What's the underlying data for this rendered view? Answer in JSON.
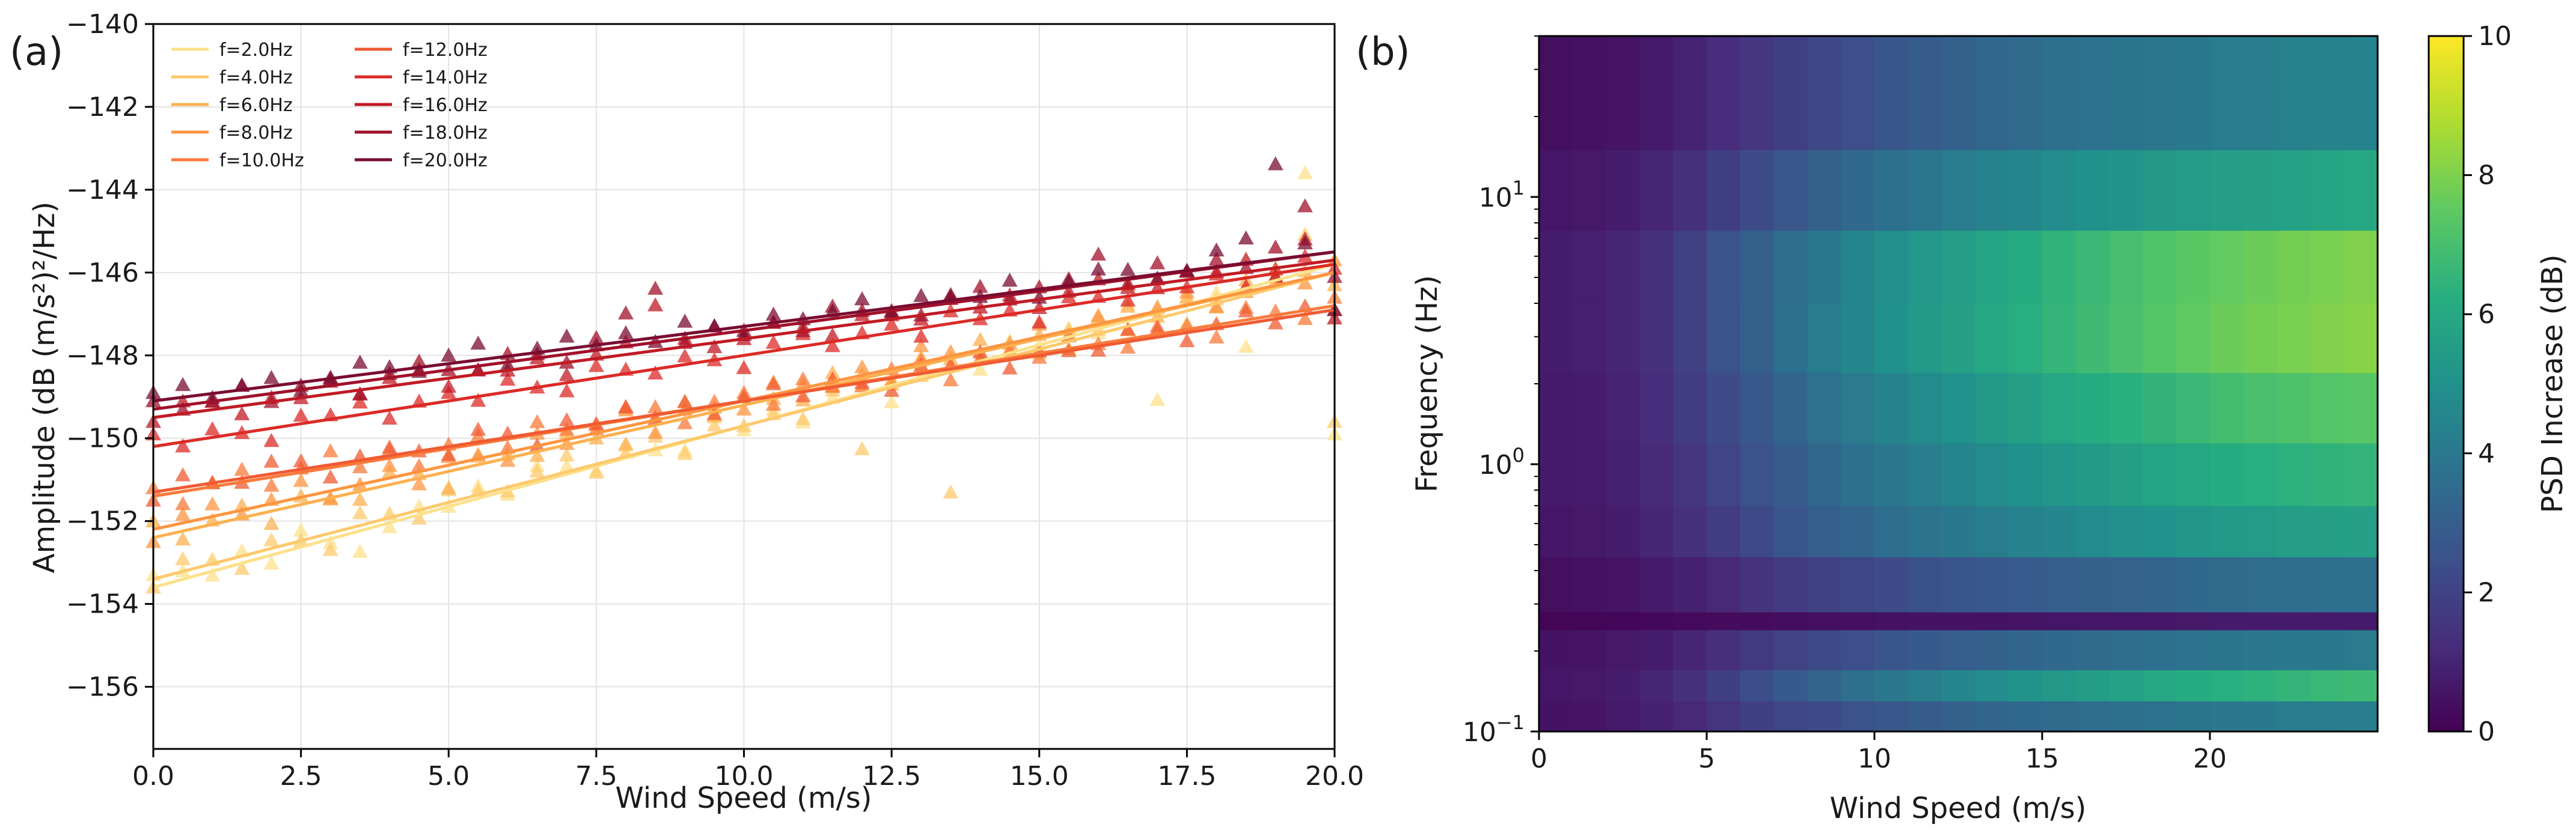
{
  "chart_data": [
    {
      "panel": "(a)",
      "type": "scatter",
      "marker": "triangle",
      "fit": "linear",
      "xlabel": "Wind Speed (m/s)",
      "ylabel": "Amplitude (dB (m/s²)²/Hz)",
      "xlim": [
        0,
        20
      ],
      "ylim": [
        -157.5,
        -140
      ],
      "xticks": [
        0,
        2.5,
        5,
        7.5,
        10,
        12.5,
        15,
        17.5,
        20
      ],
      "xtick_labels": [
        "0.0",
        "2.5",
        "5.0",
        "7.5",
        "10.0",
        "12.5",
        "15.0",
        "17.5",
        "20.0"
      ],
      "yticks": [
        -156,
        -154,
        -152,
        -150,
        -148,
        -146,
        -144,
        -142,
        -140
      ],
      "ytick_labels": [
        "−156",
        "−154",
        "−152",
        "−150",
        "−148",
        "−146",
        "−144",
        "−142",
        "−140"
      ],
      "grid": true,
      "legend_position": "top-left",
      "x": [
        0,
        0.5,
        1,
        1.5,
        2,
        2.5,
        3,
        3.5,
        4,
        4.5,
        5,
        5.5,
        6,
        6.5,
        7,
        7.5,
        8,
        8.5,
        9,
        9.5,
        10,
        10.5,
        11,
        11.5,
        12,
        12.5,
        13,
        13.5,
        14,
        14.5,
        15,
        15.5,
        16,
        16.5,
        17,
        17.5,
        18,
        18.5,
        19,
        19.5,
        20
      ],
      "series": [
        {
          "name": "f=2.0Hz",
          "color": "#fde08a",
          "intercept": -153.6,
          "slope": 0.39,
          "residuals": [
            0.3,
            0.2,
            -0.1,
            0.3,
            -0.2,
            0.4,
            -0.1,
            -0.5,
            -0.1,
            0.2,
            0.0,
            0.3,
            -0.1,
            0.4,
            0.2,
            -0.1,
            0.3,
            0.0,
            -0.2,
            0.4,
            -0.1,
            0.2,
            -0.3,
            0.1,
            0.2,
            -0.4,
            0.3,
            0.1,
            -0.2,
            0.3,
            0.0,
            0.2,
            -0.1,
            0.4,
            -2.1,
            0.2,
            0.1,
            -1.4,
            0.3,
            2.4,
            -4.1
          ]
        },
        {
          "name": "f=4.0Hz",
          "color": "#fdc96c",
          "intercept": -153.4,
          "slope": 0.37,
          "residuals": [
            -0.2,
            0.3,
            0.1,
            -0.3,
            0.2,
            0.0,
            -0.4,
            0.3,
            0.1,
            -0.2,
            0.3,
            0.1,
            -0.1,
            0.2,
            0.4,
            -0.2,
            0.1,
            0.3,
            -0.3,
            0.2,
            0.0,
            0.1,
            -0.2,
            0.3,
            -1.3,
            0.2,
            0.1,
            -2.9,
            0.3,
            0.2,
            -0.1,
            0.3,
            0.1,
            1.0,
            0.2,
            -0.3,
            0.1,
            0.2,
            0.3,
            1.1,
            -3.6
          ]
        },
        {
          "name": "f=6.0Hz",
          "color": "#fcb050",
          "intercept": -152.4,
          "slope": 0.32,
          "residuals": [
            0.4,
            -0.2,
            0.1,
            0.3,
            -0.3,
            0.2,
            0.0,
            -0.2,
            0.3,
            0.1,
            -0.4,
            0.2,
            0.1,
            -0.1,
            0.3,
            0.0,
            -0.3,
            0.2,
            0.4,
            -0.1,
            0.2,
            0.0,
            -0.2,
            0.3,
            0.1,
            -0.3,
            0.2,
            0.0,
            0.3,
            -0.2,
            0.1,
            -0.4,
            0.2,
            0.3,
            -0.1,
            0.2,
            -0.2,
            0.3,
            0.1,
            0.2,
            -0.3
          ]
        },
        {
          "name": "f=8.0Hz",
          "color": "#fc9540",
          "intercept": -152.2,
          "slope": 0.31,
          "residuals": [
            -0.3,
            0.2,
            0.3,
            -0.1,
            0.1,
            0.4,
            -0.2,
            0.0,
            0.3,
            -0.3,
            0.2,
            0.1,
            -0.2,
            0.3,
            -0.1,
            0.2,
            0.4,
            -0.3,
            0.1,
            0.0,
            -0.2,
            0.3,
            0.1,
            -0.1,
            0.2,
            -0.3,
            0.4,
            0.1,
            -0.2,
            0.0,
            0.3,
            -0.1,
            0.2,
            -0.3,
            0.1,
            0.3,
            -0.2,
            0.0,
            0.2,
            -0.1,
            0.3
          ]
        },
        {
          "name": "f=10.0Hz",
          "color": "#f97a3a",
          "intercept": -151.4,
          "slope": 0.23,
          "residuals": [
            0.2,
            -0.3,
            0.1,
            0.3,
            -0.2,
            0.1,
            0.4,
            -0.1,
            0.2,
            -0.3,
            0.1,
            0.2,
            -0.2,
            0.3,
            0.0,
            -0.1,
            0.3,
            0.2,
            -0.3,
            0.1,
            0.2,
            -0.2,
            0.3,
            0.0,
            -0.1,
            0.2,
            0.3,
            -0.3,
            0.1,
            0.2,
            -0.1,
            0.3,
            0.0,
            -0.2,
            0.2,
            0.1,
            -0.3,
            0.3,
            0.1,
            -0.2,
            0.2
          ]
        },
        {
          "name": "f=12.0Hz",
          "color": "#f05a32",
          "intercept": -151.3,
          "slope": 0.22,
          "residuals": [
            -0.2,
            0.3,
            0.0,
            -0.1,
            0.3,
            0.2,
            -0.3,
            0.1,
            0.2,
            0.0,
            -0.2,
            0.3,
            0.1,
            -0.3,
            0.2,
            0.0,
            0.3,
            -0.1,
            0.2,
            -0.2,
            0.1,
            0.3,
            -0.1,
            0.2,
            0.0,
            -0.3,
            0.2,
            0.1,
            0.3,
            -0.2,
            0.1,
            0.0,
            -0.1,
            0.3,
            0.2,
            -0.2,
            0.1,
            0.3,
            -0.1,
            0.2,
            0.0
          ]
        },
        {
          "name": "f=14.0Hz",
          "color": "#dc2a26",
          "intercept": -150.2,
          "slope": 0.22,
          "residuals": [
            0.3,
            -0.1,
            0.2,
            0.0,
            -0.3,
            0.2,
            0.1,
            0.3,
            -0.2,
            0.1,
            0.2,
            -0.1,
            0.3,
            0.0,
            -0.2,
            0.3,
            0.1,
            -0.1,
            0.2,
            0.0,
            -0.3,
            0.2,
            0.3,
            -0.1,
            0.1,
            0.2,
            -0.2,
            0.3,
            0.0,
            0.1,
            -0.3,
            0.2,
            0.1,
            -0.1,
            0.3,
            0.0,
            0.2,
            -0.2,
            0.1,
            0.3,
            -0.1
          ]
        },
        {
          "name": "f=16.0Hz",
          "color": "#c11a24",
          "intercept": -149.5,
          "slope": 0.19,
          "residuals": [
            -0.1,
            0.3,
            0.2,
            -0.2,
            0.1,
            0.0,
            0.3,
            -0.1,
            0.2,
            0.3,
            -0.2,
            0.1,
            0.0,
            0.2,
            -0.3,
            0.1,
            0.3,
            1.1,
            0.2,
            -0.1,
            0.0,
            0.3,
            0.1,
            -0.2,
            0.2,
            0.1,
            -0.1,
            0.3,
            0.0,
            0.2,
            -0.2,
            0.1,
            0.3,
            0.0,
            -0.1,
            0.2,
            0.1,
            0.3,
            -0.2,
            0.6,
            -1.4
          ]
        },
        {
          "name": "f=18.0Hz",
          "color": "#a1102a",
          "intercept": -149.3,
          "slope": 0.19,
          "residuals": [
            0.2,
            -0.1,
            0.0,
            0.3,
            -0.2,
            0.1,
            0.2,
            -0.3,
            0.1,
            0.3,
            0.0,
            -0.1,
            0.2,
            0.1,
            -0.2,
            0.3,
            0.8,
            1.3,
            -0.1,
            0.2,
            0.0,
            0.1,
            -0.2,
            0.3,
            0.1,
            0.0,
            -0.2,
            0.2,
            0.3,
            -0.1,
            0.1,
            0.2,
            0.7,
            -0.1,
            0.3,
            0.0,
            0.2,
            -0.1,
            0.3,
            1.2,
            -0.6
          ]
        },
        {
          "name": "f=20.0Hz",
          "color": "#7a0c30",
          "intercept": -149.1,
          "slope": 0.18,
          "residuals": [
            0.2,
            0.3,
            -0.1,
            0.1,
            0.2,
            -0.2,
            0.0,
            0.3,
            0.1,
            -0.1,
            0.2,
            0.4,
            -0.2,
            0.1,
            0.3,
            0.0,
            0.2,
            -0.1,
            0.3,
            0.1,
            -0.2,
            0.2,
            0.0,
            0.1,
            0.3,
            -0.1,
            0.2,
            0.1,
            0.0,
            0.3,
            -0.2,
            0.1,
            0.3,
            0.2,
            -0.1,
            0.0,
            0.4,
            0.6,
            2.3,
            0.3,
            -1.4
          ]
        }
      ]
    },
    {
      "panel": "(b)",
      "type": "heatmap",
      "xlabel": "Wind Speed (m/s)",
      "ylabel": "Frequency (Hz)",
      "x_range": [
        0,
        25
      ],
      "xticks": [
        0,
        5,
        10,
        15,
        20
      ],
      "xtick_labels": [
        "0",
        "5",
        "10",
        "15",
        "20"
      ],
      "y_scale": "log",
      "y_range": [
        0.1,
        40
      ],
      "yticks": [
        0.1,
        1,
        10
      ],
      "ytick_labels": [
        {
          "base": "10",
          "exp": "−1"
        },
        {
          "base": "10",
          "exp": "0"
        },
        {
          "base": "10",
          "exp": "1"
        }
      ],
      "colormap": "viridis",
      "colorbar": {
        "label": "PSD Increase (dB)",
        "range": [
          0,
          10
        ],
        "ticks": [
          0,
          2,
          4,
          6,
          8,
          10
        ],
        "tick_labels": [
          "0",
          "2",
          "4",
          "6",
          "8",
          "10"
        ]
      },
      "x_samples": [
        0,
        1,
        2,
        3,
        4,
        5,
        6,
        7,
        8,
        9,
        10,
        11,
        12,
        13,
        14,
        15,
        16,
        17,
        18,
        19,
        20,
        21,
        22,
        23,
        24,
        25
      ],
      "frequency_bands": [
        {
          "fmin": 0.1,
          "fmax": 0.13,
          "values": [
            0.5,
            0.5,
            0.6,
            0.8,
            1.0,
            1.3,
            1.7,
            2.0,
            2.2,
            2.4,
            2.6,
            2.8,
            3.0,
            3.2,
            3.3,
            3.4,
            3.5,
            3.6,
            3.7,
            3.8,
            3.9,
            4.0,
            4.1,
            4.2,
            4.2,
            4.3
          ]
        },
        {
          "fmin": 0.13,
          "fmax": 0.17,
          "values": [
            0.6,
            0.6,
            0.7,
            0.9,
            1.2,
            1.6,
            2.1,
            2.6,
            3.0,
            3.4,
            3.8,
            4.1,
            4.4,
            4.7,
            5.0,
            5.2,
            5.4,
            5.6,
            5.8,
            6.0,
            6.2,
            6.3,
            6.5,
            6.6,
            6.7,
            6.8
          ]
        },
        {
          "fmin": 0.17,
          "fmax": 0.24,
          "values": [
            0.5,
            0.5,
            0.6,
            0.7,
            0.9,
            1.2,
            1.5,
            1.8,
            2.1,
            2.3,
            2.5,
            2.7,
            2.9,
            3.0,
            3.2,
            3.3,
            3.4,
            3.5,
            3.6,
            3.7,
            3.8,
            3.9,
            4.0,
            4.0,
            4.1,
            4.1
          ]
        },
        {
          "fmin": 0.24,
          "fmax": 0.28,
          "values": [
            0.1,
            0.1,
            0.1,
            0.2,
            0.2,
            0.3,
            0.3,
            0.3,
            0.4,
            0.4,
            0.4,
            0.5,
            0.5,
            0.5,
            0.5,
            0.6,
            0.6,
            0.6,
            0.6,
            0.6,
            0.7,
            0.7,
            0.7,
            0.7,
            0.7,
            0.7
          ]
        },
        {
          "fmin": 0.28,
          "fmax": 0.45,
          "values": [
            0.4,
            0.4,
            0.5,
            0.6,
            0.8,
            1.0,
            1.3,
            1.6,
            1.8,
            2.0,
            2.2,
            2.4,
            2.5,
            2.7,
            2.8,
            2.9,
            3.0,
            3.1,
            3.2,
            3.3,
            3.4,
            3.5,
            3.5,
            3.6,
            3.6,
            3.7
          ]
        },
        {
          "fmin": 0.45,
          "fmax": 0.7,
          "values": [
            0.6,
            0.6,
            0.7,
            0.9,
            1.2,
            1.6,
            2.0,
            2.4,
            2.8,
            3.1,
            3.4,
            3.7,
            3.9,
            4.1,
            4.3,
            4.5,
            4.7,
            4.8,
            5.0,
            5.1,
            5.3,
            5.4,
            5.5,
            5.6,
            5.6,
            5.7
          ]
        },
        {
          "fmin": 0.7,
          "fmax": 1.2,
          "values": [
            0.7,
            0.7,
            0.8,
            1.0,
            1.4,
            1.8,
            2.3,
            2.7,
            3.1,
            3.5,
            3.8,
            4.1,
            4.4,
            4.6,
            4.9,
            5.1,
            5.3,
            5.5,
            5.7,
            5.9,
            6.0,
            6.2,
            6.3,
            6.4,
            6.5,
            6.6
          ]
        },
        {
          "fmin": 1.2,
          "fmax": 2.2,
          "values": [
            0.7,
            0.7,
            0.8,
            1.1,
            1.5,
            2.0,
            2.5,
            3.0,
            3.5,
            3.9,
            4.3,
            4.6,
            4.9,
            5.2,
            5.5,
            5.8,
            6.0,
            6.2,
            6.4,
            6.6,
            6.8,
            7.0,
            7.1,
            7.2,
            7.3,
            7.4
          ]
        },
        {
          "fmin": 2.2,
          "fmax": 4.0,
          "values": [
            0.8,
            0.8,
            0.9,
            1.2,
            1.6,
            2.2,
            2.8,
            3.4,
            3.9,
            4.4,
            4.8,
            5.2,
            5.5,
            5.8,
            6.1,
            6.4,
            6.7,
            6.9,
            7.2,
            7.4,
            7.6,
            7.8,
            7.9,
            8.0,
            8.1,
            8.2
          ]
        },
        {
          "fmin": 4.0,
          "fmax": 7.5,
          "values": [
            0.8,
            0.8,
            0.9,
            1.2,
            1.6,
            2.2,
            2.8,
            3.3,
            3.8,
            4.3,
            4.7,
            5.1,
            5.4,
            5.7,
            6.0,
            6.3,
            6.6,
            6.8,
            7.1,
            7.3,
            7.5,
            7.6,
            7.8,
            7.9,
            8.0,
            8.1
          ]
        },
        {
          "fmin": 7.5,
          "fmax": 15,
          "values": [
            0.6,
            0.6,
            0.7,
            0.9,
            1.2,
            1.6,
            2.1,
            2.5,
            2.9,
            3.2,
            3.5,
            3.8,
            4.0,
            4.3,
            4.5,
            4.7,
            4.9,
            5.1,
            5.2,
            5.4,
            5.5,
            5.6,
            5.7,
            5.8,
            5.9,
            6.0
          ]
        },
        {
          "fmin": 15,
          "fmax": 40,
          "values": [
            0.4,
            0.4,
            0.5,
            0.6,
            0.8,
            1.1,
            1.4,
            1.7,
            2.0,
            2.3,
            2.5,
            2.8,
            3.0,
            3.2,
            3.4,
            3.5,
            3.7,
            3.8,
            3.9,
            4.0,
            4.1,
            4.2,
            4.3,
            4.4,
            4.4,
            4.5
          ]
        }
      ]
    }
  ]
}
